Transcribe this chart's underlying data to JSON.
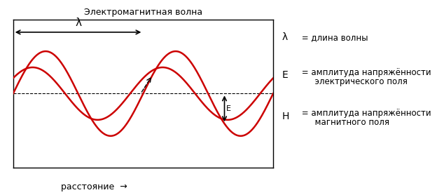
{
  "title": "Электромагнитная волна",
  "xlabel": "расстояние",
  "bg_color": "#ffffff",
  "wave_color": "#cc0000",
  "text_color": "#000000",
  "lambda_label": "λ",
  "E_label": "E",
  "H_label": "H",
  "lambda_text": " = длина волны",
  "E_text1": " = амплитуда напряжённости",
  "E_text2": "      электрического поля",
  "H_text1": " = амплитуда напряжённости",
  "H_text2": "      магнитного поля"
}
